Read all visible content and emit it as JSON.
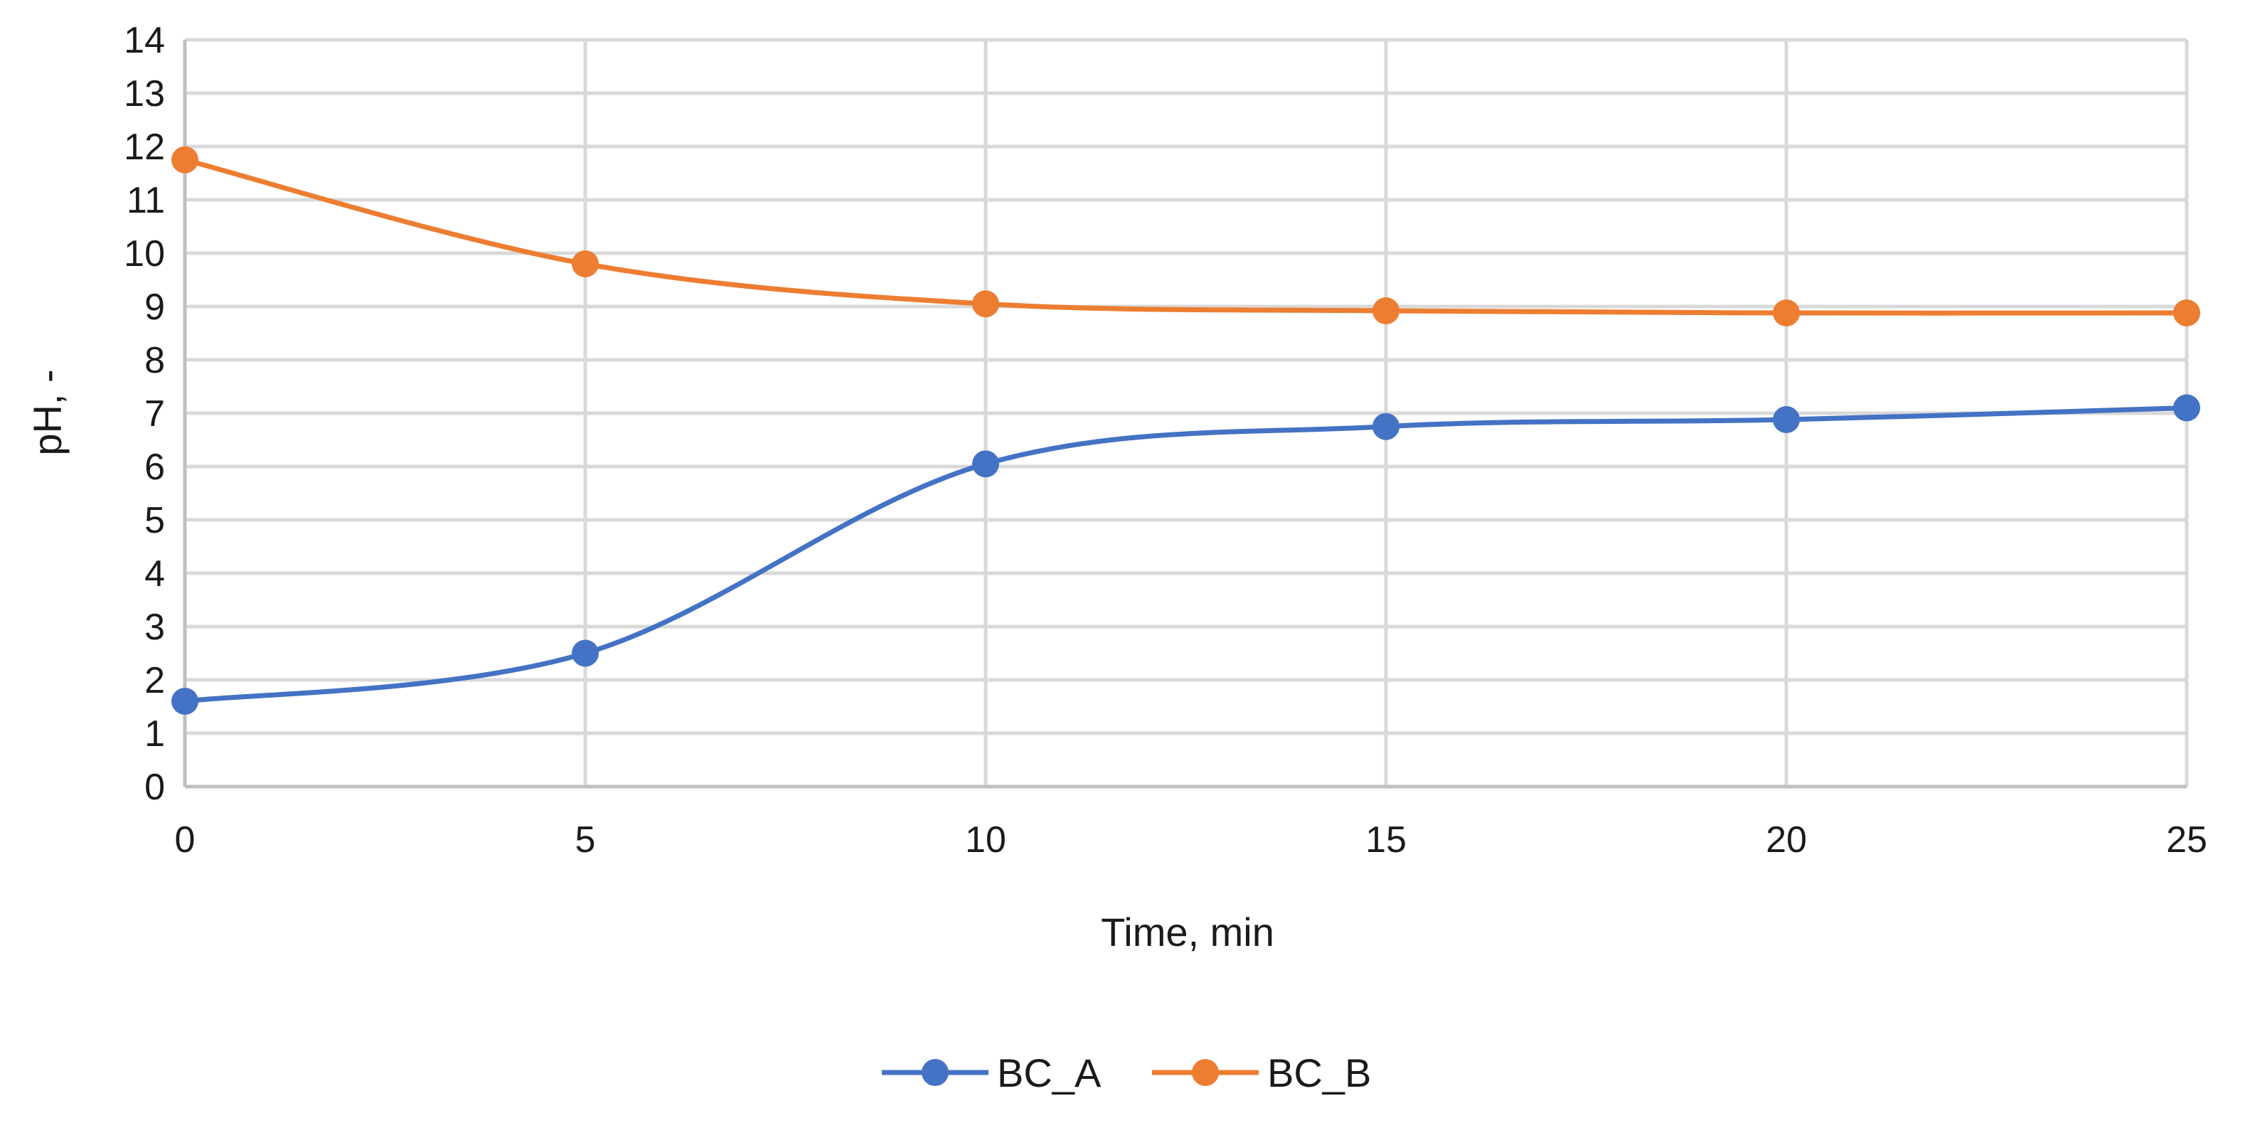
{
  "chart_data": {
    "type": "line",
    "title": "",
    "xlabel": "Time, min",
    "ylabel": "pH, -",
    "xlim": [
      0,
      25
    ],
    "ylim": [
      0,
      14
    ],
    "x_ticks": [
      0,
      5,
      10,
      15,
      20,
      25
    ],
    "y_ticks": [
      0,
      1,
      2,
      3,
      4,
      5,
      6,
      7,
      8,
      9,
      10,
      11,
      12,
      13,
      14
    ],
    "grid": true,
    "smooth": true,
    "legend_position": "bottom-center",
    "x": [
      0,
      5,
      10,
      15,
      20,
      25
    ],
    "series": [
      {
        "name": "BC_A",
        "color": "#4472C4",
        "values": [
          1.6,
          2.5,
          6.05,
          6.75,
          6.88,
          7.1
        ]
      },
      {
        "name": "BC_B",
        "color": "#ED7D31",
        "values": [
          11.75,
          9.8,
          9.05,
          8.92,
          8.88,
          8.88
        ]
      }
    ]
  }
}
